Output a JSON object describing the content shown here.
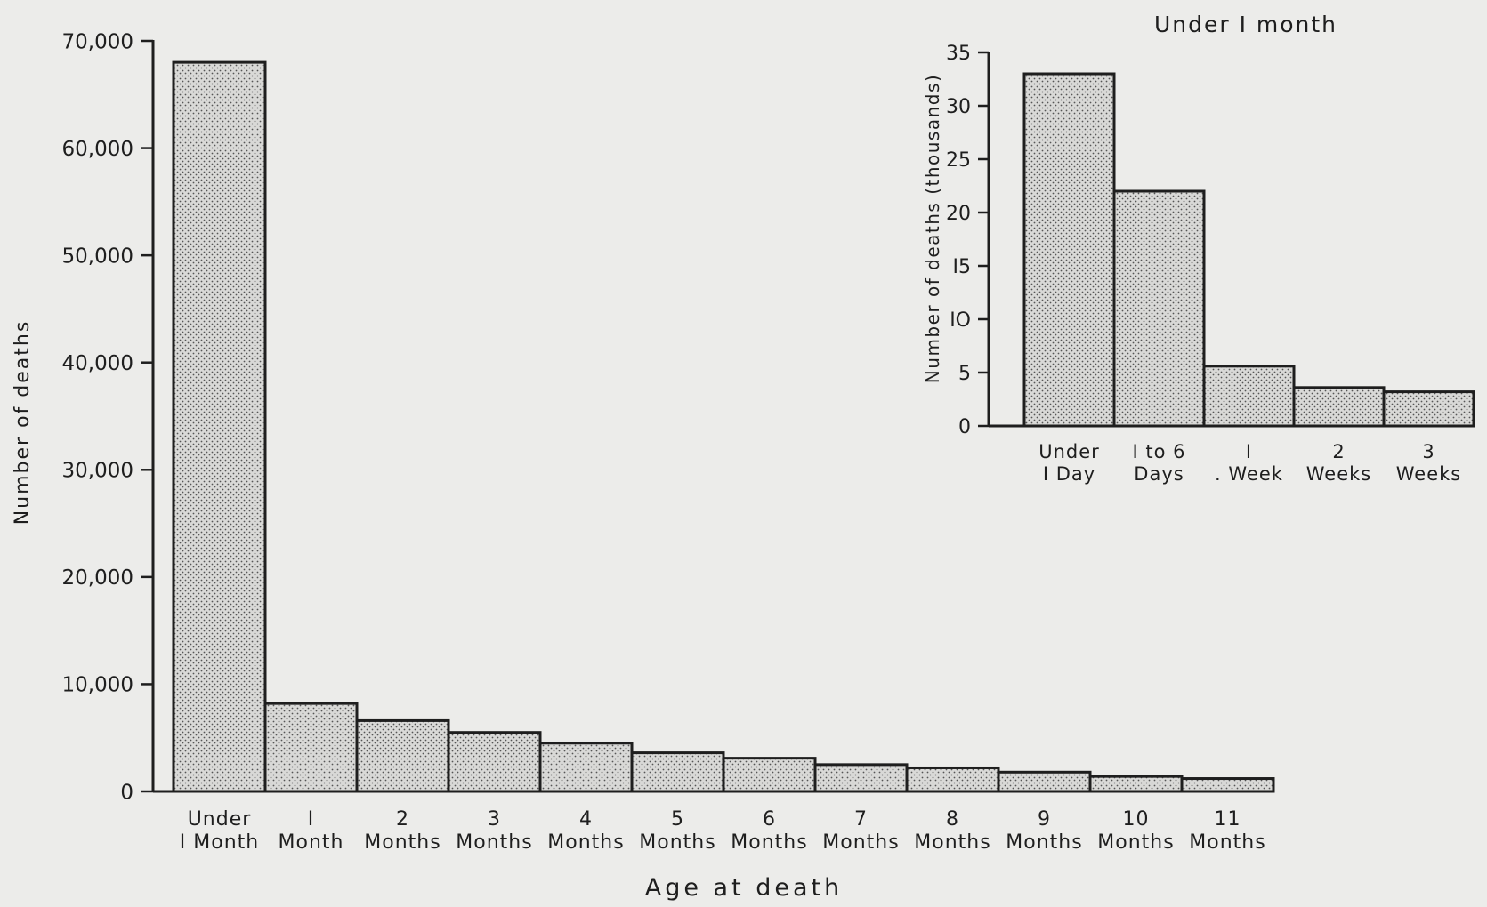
{
  "chart_data": [
    {
      "type": "bar",
      "title": "",
      "xlabel": "Age at death",
      "ylabel": "Number of deaths",
      "ylim": [
        0,
        70000
      ],
      "yticks": [
        "0",
        "10,000",
        "20,000",
        "30,000",
        "40,000",
        "50,000",
        "60,000",
        "70,000"
      ],
      "ytick_values": [
        0,
        10000,
        20000,
        30000,
        40000,
        50000,
        60000,
        70000
      ],
      "categories": [
        [
          "Under",
          "I Month"
        ],
        [
          "I",
          "Month"
        ],
        [
          "2",
          "Months"
        ],
        [
          "3",
          "Months"
        ],
        [
          "4",
          "Months"
        ],
        [
          "5",
          "Months"
        ],
        [
          "6",
          "Months"
        ],
        [
          "7",
          "Months"
        ],
        [
          "8",
          "Months"
        ],
        [
          "9",
          "Months"
        ],
        [
          "10",
          "Months"
        ],
        [
          "11",
          "Months"
        ]
      ],
      "values": [
        68000,
        8200,
        6600,
        5500,
        4500,
        3600,
        3100,
        2500,
        2200,
        1800,
        1400,
        1200
      ],
      "grid": false,
      "fill_pattern": "dotted",
      "bar_color": "#d8d8d6",
      "edge_color": "#1e1e1e"
    },
    {
      "type": "bar",
      "title": "Under I month",
      "xlabel": "",
      "ylabel": "Number of deaths (thousands)",
      "ylim": [
        0,
        35
      ],
      "yticks": [
        "0",
        "5",
        "IO",
        "I5",
        "20",
        "25",
        "30",
        "35"
      ],
      "ytick_values": [
        0,
        5,
        10,
        15,
        20,
        25,
        30,
        35
      ],
      "categories": [
        [
          "Under",
          "I Day"
        ],
        [
          "I to 6",
          "Days"
        ],
        [
          "I",
          ". Week"
        ],
        [
          "2",
          "Weeks"
        ],
        [
          "3",
          "Weeks"
        ]
      ],
      "values": [
        33,
        22,
        5.6,
        3.6,
        3.2
      ],
      "grid": false,
      "fill_pattern": "dotted",
      "bar_color": "#d8d8d6",
      "edge_color": "#1e1e1e"
    }
  ]
}
